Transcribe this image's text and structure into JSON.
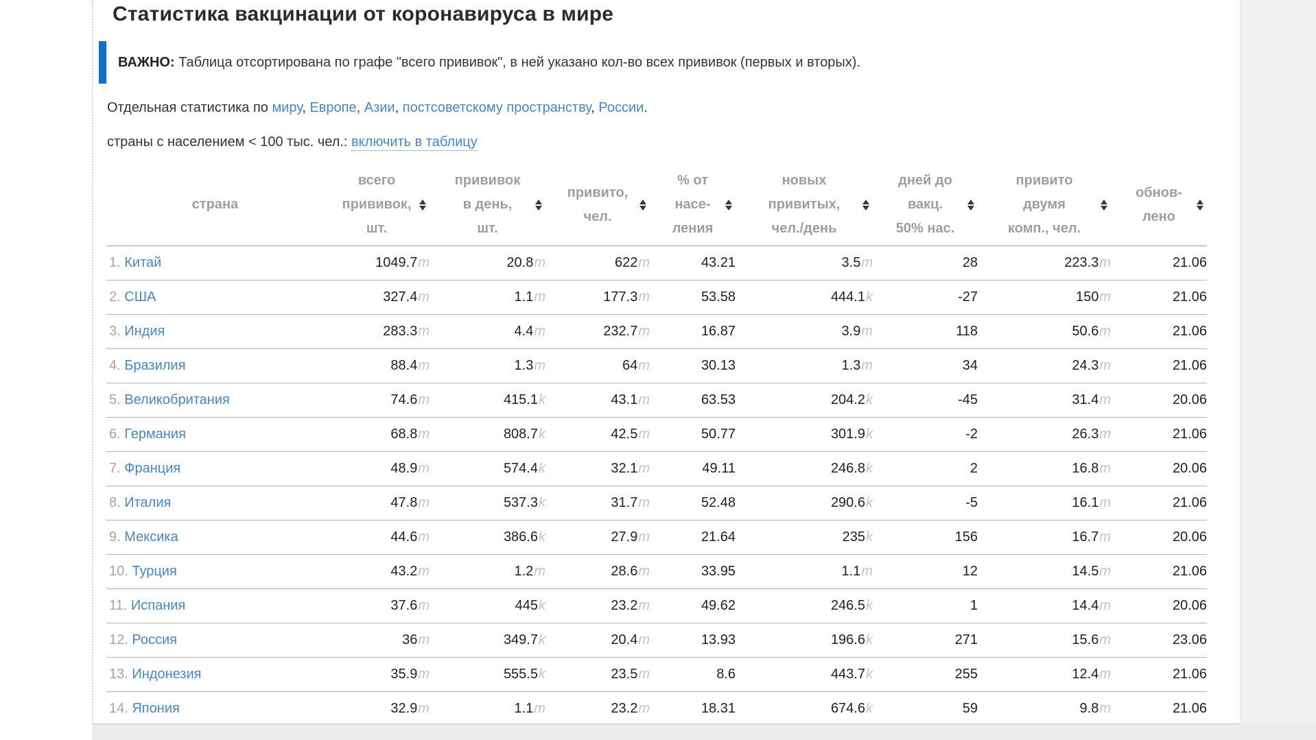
{
  "page": {
    "title": "Статистика вакцинации от коронавируса в мире",
    "important_label": "ВАЖНО:",
    "important_text": " Таблица отсортирована по графе \"всего прививок\", в ней указано кол-во всех прививок (первых и вторых).",
    "stats_prefix": "Отдельная статистика по ",
    "stats_links": [
      "миру",
      "Европе",
      "Азии",
      "постсоветскому пространству",
      "России"
    ],
    "population_text": "страны с населением < 100 тыс. чел.: ",
    "population_link": "включить в таблицу"
  },
  "colors": {
    "accent_bar": "#1270c8",
    "link": "#4786c6",
    "header_text": "#9e9e9e",
    "suffix": "#c3c3c3"
  },
  "table": {
    "headers": [
      {
        "key": "country",
        "lines": [
          "страна"
        ],
        "sortable": false
      },
      {
        "key": "total",
        "lines": [
          "всего",
          "прививок,",
          "шт."
        ],
        "sortable": true
      },
      {
        "key": "per_day",
        "lines": [
          "прививок",
          "в день,",
          "шт."
        ],
        "sortable": true
      },
      {
        "key": "vaccinated",
        "lines": [
          "привито,",
          "чел."
        ],
        "sortable": true
      },
      {
        "key": "pct",
        "lines": [
          "% от",
          "насе-",
          "ления"
        ],
        "sortable": true
      },
      {
        "key": "new_per_day",
        "lines": [
          "новых",
          "привитых,",
          "чел./день"
        ],
        "sortable": true
      },
      {
        "key": "days_to_50",
        "lines": [
          "дней до",
          "вакц.",
          "50% нас."
        ],
        "sortable": true
      },
      {
        "key": "two_comp",
        "lines": [
          "привито",
          "двумя",
          "комп., чел."
        ],
        "sortable": true
      },
      {
        "key": "updated",
        "lines": [
          "обнов-",
          "лено"
        ],
        "sortable": true
      }
    ],
    "col_keys": [
      "total",
      "per_day",
      "vaccinated",
      "pct",
      "new_per_day",
      "days_to_50",
      "two_comp",
      "updated"
    ],
    "rows": [
      {
        "rank": "1.",
        "country": "Китай",
        "cells": [
          {
            "v": "1049.7",
            "s": "m"
          },
          {
            "v": "20.8",
            "s": "m"
          },
          {
            "v": "622",
            "s": "m"
          },
          {
            "v": "43.21",
            "s": ""
          },
          {
            "v": "3.5",
            "s": "m"
          },
          {
            "v": "28",
            "s": ""
          },
          {
            "v": "223.3",
            "s": "m"
          },
          {
            "v": "21.06",
            "s": ""
          }
        ]
      },
      {
        "rank": "2.",
        "country": "США",
        "cells": [
          {
            "v": "327.4",
            "s": "m"
          },
          {
            "v": "1.1",
            "s": "m"
          },
          {
            "v": "177.3",
            "s": "m"
          },
          {
            "v": "53.58",
            "s": ""
          },
          {
            "v": "444.1",
            "s": "k"
          },
          {
            "v": "-27",
            "s": ""
          },
          {
            "v": "150",
            "s": "m"
          },
          {
            "v": "21.06",
            "s": ""
          }
        ]
      },
      {
        "rank": "3.",
        "country": "Индия",
        "cells": [
          {
            "v": "283.3",
            "s": "m"
          },
          {
            "v": "4.4",
            "s": "m"
          },
          {
            "v": "232.7",
            "s": "m"
          },
          {
            "v": "16.87",
            "s": ""
          },
          {
            "v": "3.9",
            "s": "m"
          },
          {
            "v": "118",
            "s": ""
          },
          {
            "v": "50.6",
            "s": "m"
          },
          {
            "v": "21.06",
            "s": ""
          }
        ]
      },
      {
        "rank": "4.",
        "country": "Бразилия",
        "cells": [
          {
            "v": "88.4",
            "s": "m"
          },
          {
            "v": "1.3",
            "s": "m"
          },
          {
            "v": "64",
            "s": "m"
          },
          {
            "v": "30.13",
            "s": ""
          },
          {
            "v": "1.3",
            "s": "m"
          },
          {
            "v": "34",
            "s": ""
          },
          {
            "v": "24.3",
            "s": "m"
          },
          {
            "v": "21.06",
            "s": ""
          }
        ]
      },
      {
        "rank": "5.",
        "country": "Великобритания",
        "cells": [
          {
            "v": "74.6",
            "s": "m"
          },
          {
            "v": "415.1",
            "s": "k"
          },
          {
            "v": "43.1",
            "s": "m"
          },
          {
            "v": "63.53",
            "s": ""
          },
          {
            "v": "204.2",
            "s": "k"
          },
          {
            "v": "-45",
            "s": ""
          },
          {
            "v": "31.4",
            "s": "m"
          },
          {
            "v": "20.06",
            "s": ""
          }
        ]
      },
      {
        "rank": "6.",
        "country": "Германия",
        "cells": [
          {
            "v": "68.8",
            "s": "m"
          },
          {
            "v": "808.7",
            "s": "k"
          },
          {
            "v": "42.5",
            "s": "m"
          },
          {
            "v": "50.77",
            "s": ""
          },
          {
            "v": "301.9",
            "s": "k"
          },
          {
            "v": "-2",
            "s": ""
          },
          {
            "v": "26.3",
            "s": "m"
          },
          {
            "v": "21.06",
            "s": ""
          }
        ]
      },
      {
        "rank": "7.",
        "country": "Франция",
        "cells": [
          {
            "v": "48.9",
            "s": "m"
          },
          {
            "v": "574.4",
            "s": "k"
          },
          {
            "v": "32.1",
            "s": "m"
          },
          {
            "v": "49.11",
            "s": ""
          },
          {
            "v": "246.8",
            "s": "k"
          },
          {
            "v": "2",
            "s": ""
          },
          {
            "v": "16.8",
            "s": "m"
          },
          {
            "v": "20.06",
            "s": ""
          }
        ]
      },
      {
        "rank": "8.",
        "country": "Италия",
        "cells": [
          {
            "v": "47.8",
            "s": "m"
          },
          {
            "v": "537.3",
            "s": "k"
          },
          {
            "v": "31.7",
            "s": "m"
          },
          {
            "v": "52.48",
            "s": ""
          },
          {
            "v": "290.6",
            "s": "k"
          },
          {
            "v": "-5",
            "s": ""
          },
          {
            "v": "16.1",
            "s": "m"
          },
          {
            "v": "21.06",
            "s": ""
          }
        ]
      },
      {
        "rank": "9.",
        "country": "Мексика",
        "cells": [
          {
            "v": "44.6",
            "s": "m"
          },
          {
            "v": "386.6",
            "s": "k"
          },
          {
            "v": "27.9",
            "s": "m"
          },
          {
            "v": "21.64",
            "s": ""
          },
          {
            "v": "235",
            "s": "k"
          },
          {
            "v": "156",
            "s": ""
          },
          {
            "v": "16.7",
            "s": "m"
          },
          {
            "v": "20.06",
            "s": ""
          }
        ]
      },
      {
        "rank": "10.",
        "country": "Турция",
        "cells": [
          {
            "v": "43.2",
            "s": "m"
          },
          {
            "v": "1.2",
            "s": "m"
          },
          {
            "v": "28.6",
            "s": "m"
          },
          {
            "v": "33.95",
            "s": ""
          },
          {
            "v": "1.1",
            "s": "m"
          },
          {
            "v": "12",
            "s": ""
          },
          {
            "v": "14.5",
            "s": "m"
          },
          {
            "v": "21.06",
            "s": ""
          }
        ]
      },
      {
        "rank": "11.",
        "country": "Испания",
        "cells": [
          {
            "v": "37.6",
            "s": "m"
          },
          {
            "v": "445",
            "s": "k"
          },
          {
            "v": "23.2",
            "s": "m"
          },
          {
            "v": "49.62",
            "s": ""
          },
          {
            "v": "246.5",
            "s": "k"
          },
          {
            "v": "1",
            "s": ""
          },
          {
            "v": "14.4",
            "s": "m"
          },
          {
            "v": "20.06",
            "s": ""
          }
        ]
      },
      {
        "rank": "12.",
        "country": "Россия",
        "cells": [
          {
            "v": "36",
            "s": "m"
          },
          {
            "v": "349.7",
            "s": "k"
          },
          {
            "v": "20.4",
            "s": "m"
          },
          {
            "v": "13.93",
            "s": ""
          },
          {
            "v": "196.6",
            "s": "k"
          },
          {
            "v": "271",
            "s": ""
          },
          {
            "v": "15.6",
            "s": "m"
          },
          {
            "v": "23.06",
            "s": ""
          }
        ]
      },
      {
        "rank": "13.",
        "country": "Индонезия",
        "cells": [
          {
            "v": "35.9",
            "s": "m"
          },
          {
            "v": "555.5",
            "s": "k"
          },
          {
            "v": "23.5",
            "s": "m"
          },
          {
            "v": "8.6",
            "s": ""
          },
          {
            "v": "443.7",
            "s": "k"
          },
          {
            "v": "255",
            "s": ""
          },
          {
            "v": "12.4",
            "s": "m"
          },
          {
            "v": "21.06",
            "s": ""
          }
        ]
      },
      {
        "rank": "14.",
        "country": "Япония",
        "cells": [
          {
            "v": "32.9",
            "s": "m"
          },
          {
            "v": "1.1",
            "s": "m"
          },
          {
            "v": "23.2",
            "s": "m"
          },
          {
            "v": "18.31",
            "s": ""
          },
          {
            "v": "674.6",
            "s": "k"
          },
          {
            "v": "59",
            "s": ""
          },
          {
            "v": "9.8",
            "s": "m"
          },
          {
            "v": "21.06",
            "s": ""
          }
        ]
      }
    ]
  }
}
